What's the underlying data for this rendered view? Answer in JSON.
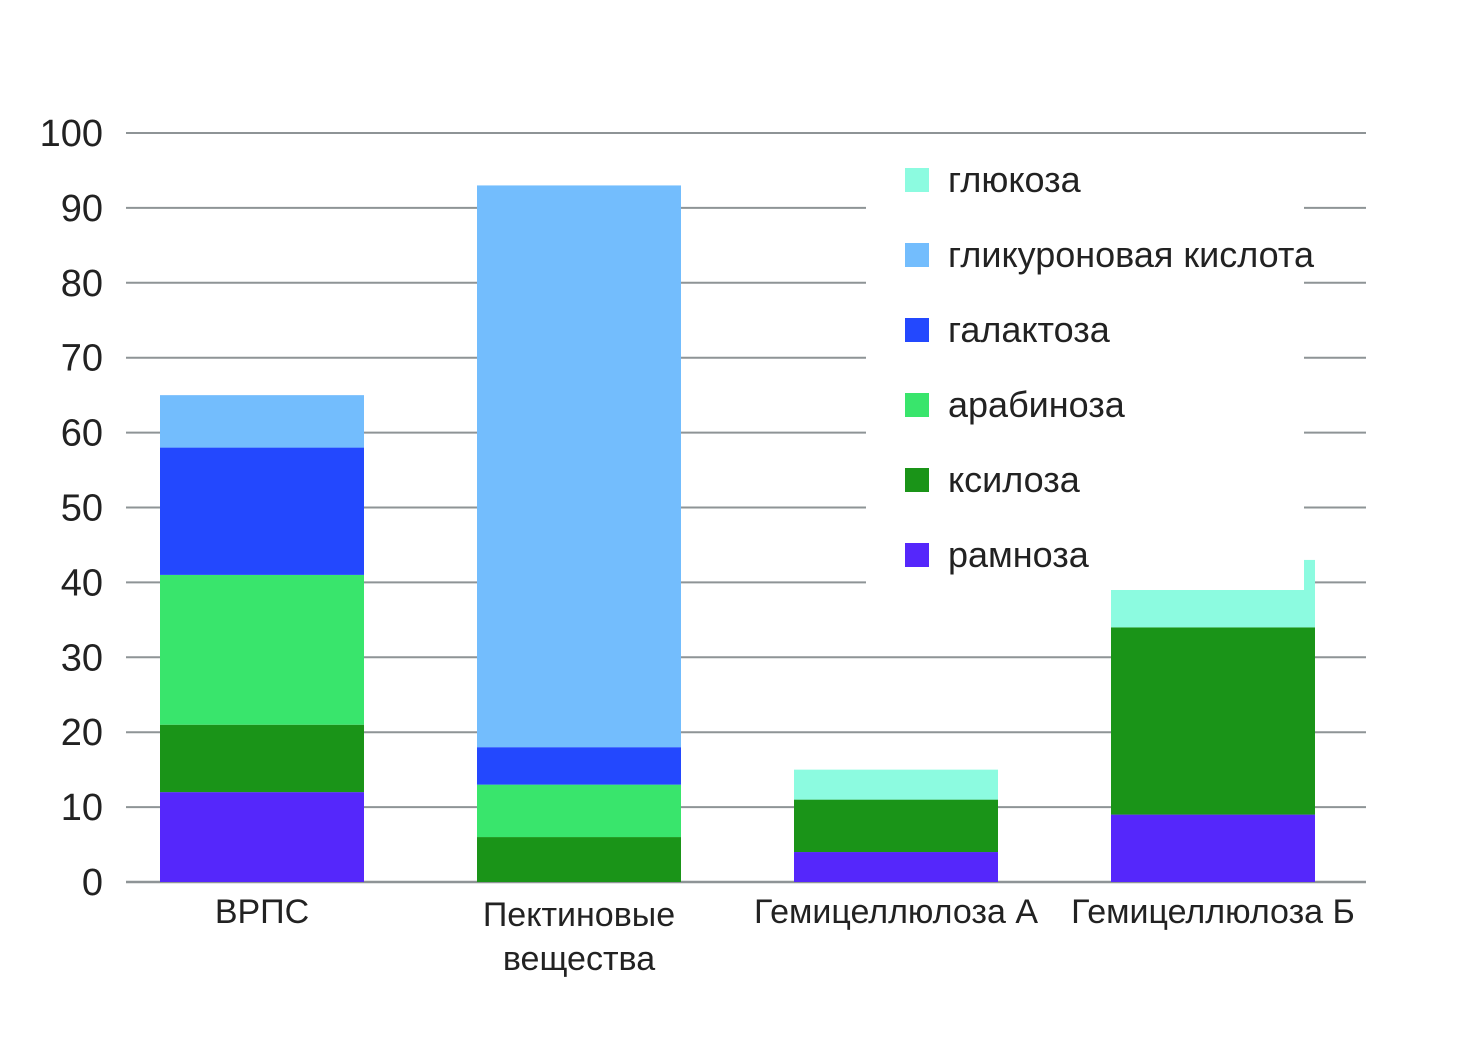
{
  "chart_data": {
    "type": "bar",
    "stacked": true,
    "categories": [
      [
        "ВРПС"
      ],
      [
        "Пектиновые",
        "вещества"
      ],
      [
        "Гемицеллюлоза А"
      ],
      [
        "Гемицеллюлоза Б"
      ]
    ],
    "series": [
      {
        "name": "рамноза",
        "color": "#5527fb",
        "values": [
          12,
          0,
          4,
          9
        ]
      },
      {
        "name": "ксилоза",
        "color": "#1a9418",
        "values": [
          9,
          6,
          7,
          25
        ]
      },
      {
        "name": "арабиноза",
        "color": "#39e56c",
        "values": [
          20,
          7,
          0,
          0
        ]
      },
      {
        "name": "галактоза",
        "color": "#2348fe",
        "values": [
          17,
          5,
          0,
          0
        ]
      },
      {
        "name": "гликуроновая кислота",
        "color": "#73bdfd",
        "values": [
          7,
          75,
          0,
          0
        ]
      },
      {
        "name": "глюкоза",
        "color": "#8cfbe0",
        "values": [
          0,
          0,
          4,
          9
        ]
      }
    ],
    "legend_order": [
      "глюкоза",
      "гликуроновая кислота",
      "галактоза",
      "арабиноза",
      "ксилоза",
      "рамноза"
    ],
    "y_ticks": [
      0,
      10,
      20,
      30,
      40,
      50,
      60,
      70,
      80,
      90,
      100
    ],
    "ylim": [
      0,
      100
    ],
    "grid": true,
    "legend_position": "top-right",
    "title": "",
    "xlabel": "",
    "ylabel": ""
  }
}
